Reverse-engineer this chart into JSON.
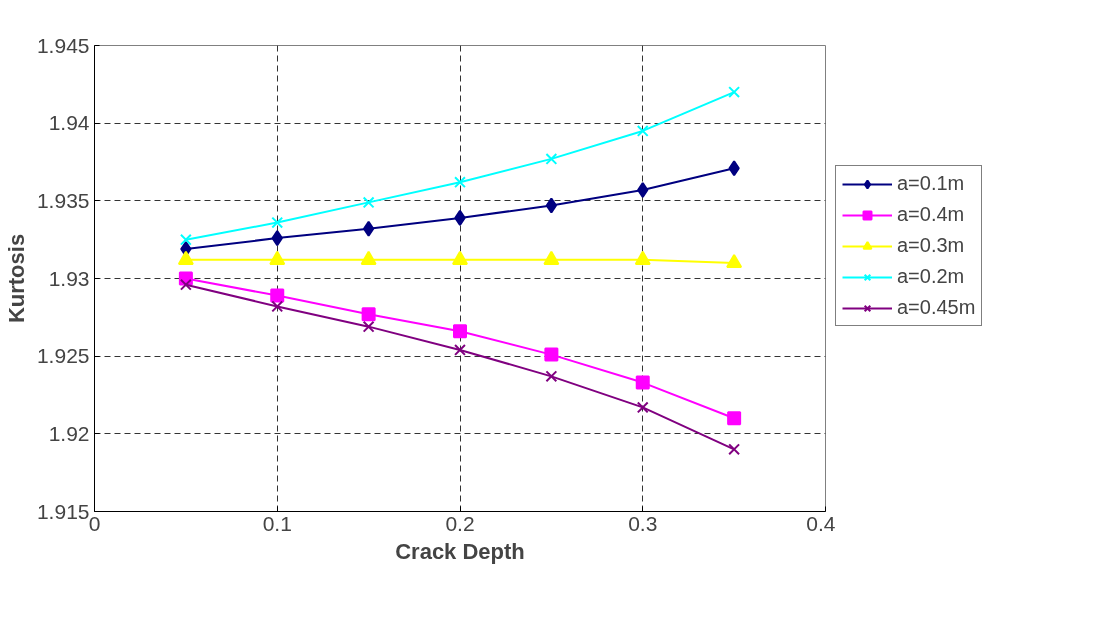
{
  "chart_data": {
    "type": "line",
    "xlabel": "Crack Depth",
    "ylabel": "Kurtosis",
    "x": [
      0.05,
      0.1,
      0.15,
      0.2,
      0.25,
      0.3,
      0.35
    ],
    "xlim": [
      0,
      0.4
    ],
    "xticks": [
      0,
      0.1,
      0.2,
      0.3,
      0.4
    ],
    "ylim": [
      1.915,
      1.945
    ],
    "yticks": [
      1.915,
      1.92,
      1.925,
      1.93,
      1.935,
      1.94,
      1.945
    ],
    "grid": true,
    "legend": "right",
    "series": [
      {
        "name": "a=0.1m",
        "color": "#000080",
        "marker": "diamond",
        "values": [
          1.9319,
          1.9326,
          1.9332,
          1.9339,
          1.9347,
          1.9357,
          1.9371
        ]
      },
      {
        "name": "a=0.4m",
        "color": "#ff00ff",
        "marker": "square",
        "values": [
          1.93,
          1.9289,
          1.9277,
          1.9266,
          1.9251,
          1.9233,
          1.921
        ]
      },
      {
        "name": "a=0.3m",
        "color": "#ffff00",
        "marker": "triangle",
        "values": [
          1.9312,
          1.9312,
          1.9312,
          1.9312,
          1.9312,
          1.9312,
          1.931
        ]
      },
      {
        "name": "a=0.2m",
        "color": "#00ffff",
        "marker": "cross",
        "values": [
          1.9325,
          1.9336,
          1.9349,
          1.9362,
          1.9377,
          1.9395,
          1.942
        ]
      },
      {
        "name": "a=0.45m",
        "color": "#800080",
        "marker": "cross",
        "values": [
          1.9296,
          1.9282,
          1.9269,
          1.9254,
          1.9237,
          1.9217,
          1.919
        ]
      }
    ]
  }
}
